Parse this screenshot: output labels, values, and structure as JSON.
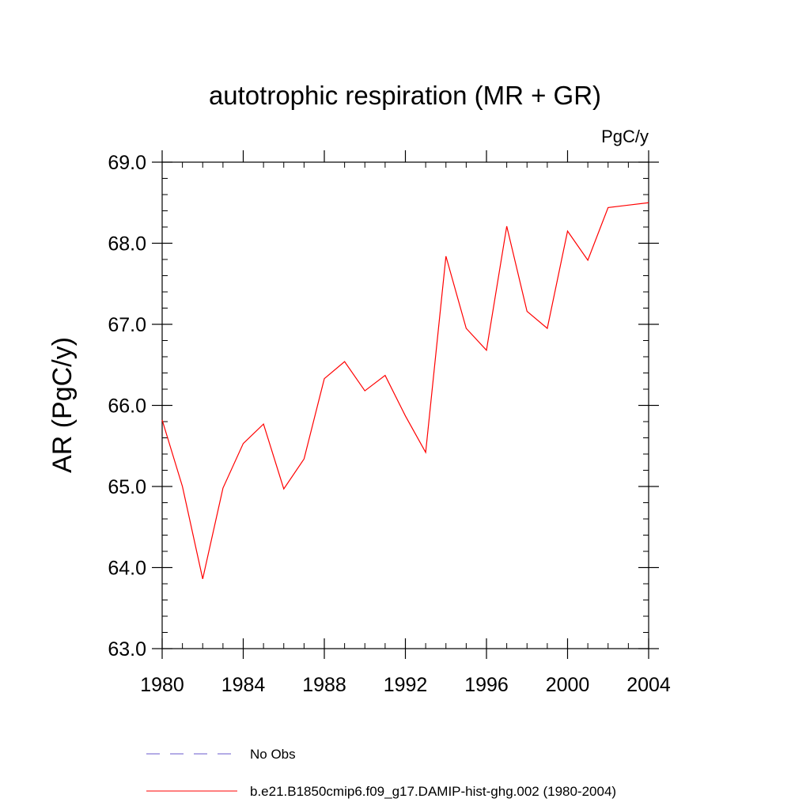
{
  "chart_data": {
    "type": "line",
    "title": "autotrophic respiration (MR + GR)",
    "units_label": "PgC/y",
    "ylabel": "AR  (PgC/y)",
    "xlabel": "",
    "xlim": [
      1980,
      2004
    ],
    "ylim": [
      63.0,
      69.0
    ],
    "x_ticks": [
      1980,
      1984,
      1988,
      1992,
      1996,
      2000,
      2004
    ],
    "x_tick_labels": [
      "1980",
      "1984",
      "1988",
      "1992",
      "1996",
      "2000",
      "2004"
    ],
    "y_ticks": [
      63.0,
      64.0,
      65.0,
      66.0,
      67.0,
      68.0,
      69.0
    ],
    "y_tick_labels": [
      "63.0",
      "64.0",
      "65.0",
      "66.0",
      "67.0",
      "68.0",
      "69.0"
    ],
    "x_minor_step": 1,
    "y_minor_step": 0.2,
    "grid": false,
    "legend_position": "bottom",
    "series": [
      {
        "name": "b.e21.B1850cmip6.f09_g17.DAMIP-hist-ghg.002 (1980-2004)",
        "color": "#ff0000",
        "style": "solid",
        "x": [
          1980,
          1981,
          1982,
          1983,
          1984,
          1985,
          1986,
          1987,
          1988,
          1989,
          1990,
          1991,
          1992,
          1993,
          1994,
          1995,
          1996,
          1997,
          1998,
          1999,
          2000,
          2001,
          2002,
          2003,
          2004
        ],
        "values": [
          65.82,
          65.0,
          63.86,
          64.98,
          65.53,
          65.77,
          64.97,
          65.34,
          66.33,
          66.54,
          66.18,
          66.37,
          65.87,
          65.42,
          67.84,
          66.95,
          66.68,
          68.21,
          67.16,
          66.95,
          68.15,
          67.79,
          68.44,
          68.47,
          68.5
        ]
      }
    ],
    "legend": [
      {
        "label": "No Obs",
        "color": "#6a5acd",
        "style": "dashed"
      },
      {
        "label": "b.e21.B1850cmip6.f09_g17.DAMIP-hist-ghg.002 (1980-2004)",
        "color": "#ff0000",
        "style": "solid"
      }
    ]
  }
}
